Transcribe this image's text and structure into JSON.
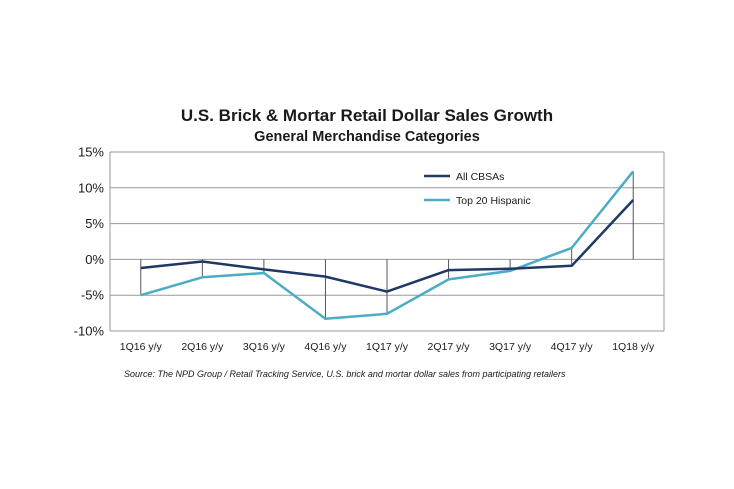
{
  "chart_data": {
    "type": "line",
    "title": "U.S. Brick & Mortar Retail Dollar Sales Growth",
    "subtitle": "General Merchandise Categories",
    "categories": [
      "1Q16 y/y",
      "2Q16 y/y",
      "3Q16 y/y",
      "4Q16 y/y",
      "1Q17 y/y",
      "2Q17 y/y",
      "3Q17 y/y",
      "4Q17 y/y",
      "1Q18 y/y"
    ],
    "y_ticks": [
      15,
      10,
      5,
      0,
      -5,
      -10
    ],
    "y_tick_labels": [
      "15%",
      "10%",
      "5%",
      "0%",
      "-5%",
      "-10%"
    ],
    "ylim": [
      -10,
      15
    ],
    "xlabel": "",
    "ylabel": "",
    "grid": true,
    "legend_position": "top-right",
    "series": [
      {
        "name": "All CBSAs",
        "color": "#1f3864",
        "values": [
          -1.2,
          -0.3,
          -1.4,
          -2.4,
          -4.5,
          -1.5,
          -1.3,
          -0.9,
          8.3
        ]
      },
      {
        "name": "Top 20 Hispanic",
        "color": "#4bacc6",
        "values": [
          -5.0,
          -2.5,
          -1.9,
          -8.3,
          -7.6,
          -2.8,
          -1.6,
          1.6,
          12.3
        ]
      }
    ],
    "source": "Source: The NPD Group / Retail Tracking Service, U.S. brick and mortar dollar sales from participating retailers"
  }
}
